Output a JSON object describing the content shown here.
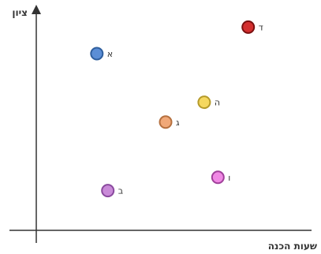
{
  "chart_data": {
    "type": "scatter",
    "title": "",
    "xlabel": "שעות הכנה",
    "ylabel": "ציון",
    "xlim": [
      0,
      100
    ],
    "ylim": [
      0,
      100
    ],
    "grid": false,
    "legend": "none",
    "points": [
      {
        "label": "א",
        "x": 22,
        "y": 80,
        "fill": "#5b8ed6",
        "stroke": "#2f5f9e"
      },
      {
        "label": "ב",
        "x": 26,
        "y": 18,
        "fill": "#c98ad8",
        "stroke": "#8a4a9e"
      },
      {
        "label": "ג",
        "x": 47,
        "y": 49,
        "fill": "#f0a878",
        "stroke": "#b5703f"
      },
      {
        "label": "ד",
        "x": 77,
        "y": 92,
        "fill": "#d32f2f",
        "stroke": "#7a1010"
      },
      {
        "label": "ה",
        "x": 61,
        "y": 58,
        "fill": "#f5d860",
        "stroke": "#b59a2a"
      },
      {
        "label": "ו",
        "x": 66,
        "y": 24,
        "fill": "#f088e4",
        "stroke": "#a0409a"
      }
    ]
  }
}
